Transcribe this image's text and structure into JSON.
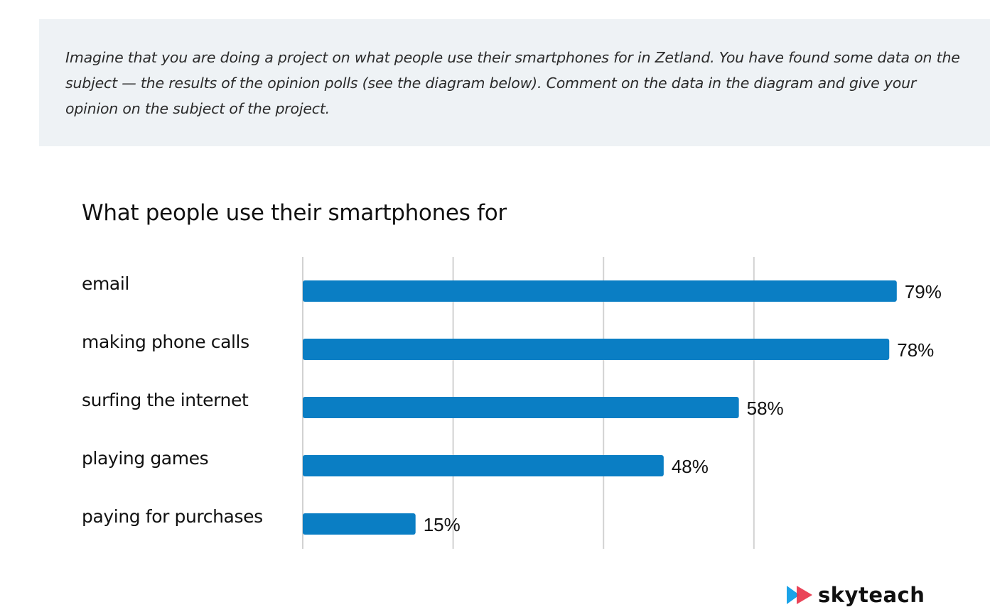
{
  "task": {
    "text": "Imagine that you are doing a project on what people use their smartphones for in Zetland. You have found some data on the subject — the results of the opinion polls (see the diagram below). Comment on the data in the diagram and give your opinion on the subject of the project."
  },
  "brand": {
    "name": "skyteach",
    "logo_icon": "skyteach-logo-icon"
  },
  "colors": {
    "bar": "#0a7ec4",
    "task_background": "#eef2f5",
    "logo_blue": "#1aa3e8",
    "logo_red": "#e8344a"
  },
  "chart_data": {
    "type": "bar",
    "orientation": "horizontal",
    "title": "What people use their smartphones for",
    "categories": [
      "email",
      "making phone calls",
      "surfing the internet",
      "playing games",
      "paying for purchases"
    ],
    "values": [
      79,
      78,
      58,
      48,
      15
    ],
    "value_labels": [
      "79%",
      "78%",
      "58%",
      "48%",
      "15%"
    ],
    "xlim": [
      0,
      80
    ],
    "grid": true,
    "xlabel": "",
    "ylabel": ""
  }
}
